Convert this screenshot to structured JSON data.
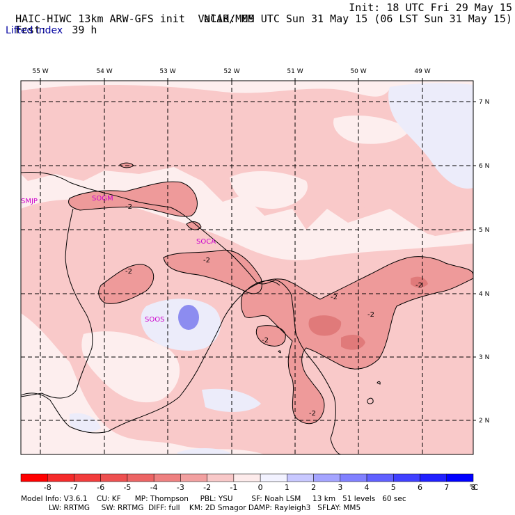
{
  "header": {
    "model": "HAIC-HIWC 13km ARW-GFS init",
    "org": "NCAR/MMM",
    "init": "Init: 18 UTC Fri 29 May 15",
    "fcst_label": "Fcst:",
    "fcst_value": "39 h",
    "valid": "Valid: 09 UTC Sun 31 May 15 (06 LST Sun 31 May 15)",
    "field": "Lifted index"
  },
  "map": {
    "lon_labels": [
      "55 W",
      "54 W",
      "53 W",
      "52 W",
      "51 W",
      "50 W",
      "49 W"
    ],
    "lat_labels": [
      "7 N",
      "6 N",
      "5 N",
      "4 N",
      "3 N",
      "2 N"
    ],
    "stations": [
      "SMJP",
      "SOGM",
      "SOCA",
      "SOOS"
    ],
    "contour_label": "-2",
    "colors": {
      "background": "#fdeeee",
      "light_pink": "#f9c9c9",
      "medium_red": "#ee9a9a",
      "deep_red": "#e07a7a",
      "light_blue": "#ececfa",
      "blue": "#8c8cf0"
    }
  },
  "colorbar": {
    "labels": [
      "-8",
      "-7",
      "-6",
      "-5",
      "-4",
      "-3",
      "-2",
      "-1",
      "0",
      "1",
      "2",
      "3",
      "4",
      "5",
      "6",
      "7",
      "8"
    ],
    "unit": "°C",
    "colors": [
      "#ff0000",
      "#f52a2a",
      "#f23c3c",
      "#ee5050",
      "#ec6464",
      "#ee8080",
      "#f2a0a0",
      "#f8c8c8",
      "#fdebeb",
      "#f2f2ff",
      "#c8c8ff",
      "#a4a4ff",
      "#8080ff",
      "#6060ff",
      "#4040ff",
      "#2020ff",
      "#0000ff"
    ]
  },
  "footer": {
    "line1": "Model Info: V3.6.1    CU: KF      MP: Thompson     PBL: YSU        SF: Noah LSM     13 km   51 levels   60 sec",
    "line2": "LW: RRTMG     SW: RRTMG  DIFF: full    KM: 2D Smagor DAMP: Rayleigh3   SFLAY: MM5"
  }
}
